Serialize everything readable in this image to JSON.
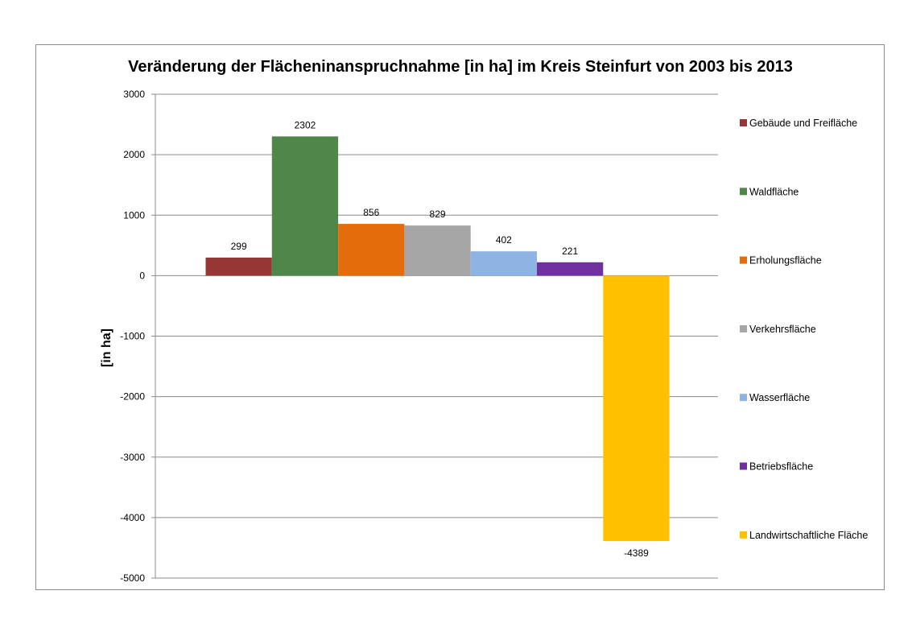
{
  "chart_data": {
    "type": "bar",
    "title": "Veränderung der Flächeninanspruchnahme [in ha] im Kreis Steinfurt von 2003 bis 2013",
    "xlabel": "",
    "ylabel": "[in ha]",
    "ylim": [
      -5000,
      3000
    ],
    "yticks": [
      "3000",
      "2000",
      "1000",
      "0",
      "-1000",
      "-2000",
      "-3000",
      "-4000",
      "-5000"
    ],
    "grid": true,
    "legend_position": "right",
    "series": [
      {
        "name": "Gebäude und Freifläche",
        "value": 299,
        "label": "299",
        "color": "#953735"
      },
      {
        "name": "Waldfläche",
        "value": 2302,
        "label": "2302",
        "color": "#4f874a"
      },
      {
        "name": "Erholungsfläche",
        "value": 856,
        "label": "856",
        "color": "#e46c0a"
      },
      {
        "name": "Verkehrsfläche",
        "value": 829,
        "label": "829",
        "color": "#a6a6a6"
      },
      {
        "name": "Wasserfläche",
        "value": 402,
        "label": "402",
        "color": "#8db4e2"
      },
      {
        "name": "Betriebsfläche",
        "value": 221,
        "label": "221",
        "color": "#7030a0"
      },
      {
        "name": "Landwirtschaftliche Fläche",
        "value": -4389,
        "label": "-4389",
        "color": "#ffc000"
      }
    ]
  }
}
